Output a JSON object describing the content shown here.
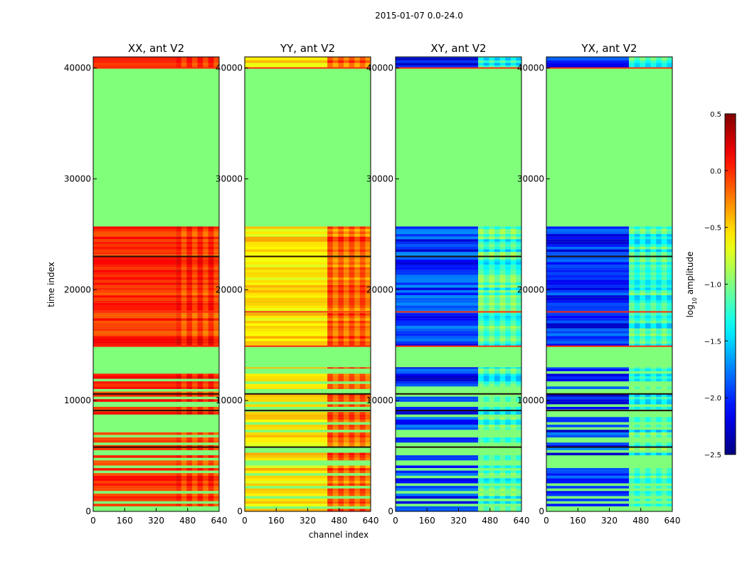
{
  "suptitle": "2015-01-07 0.0-24.0",
  "colors": {
    "flagged": "#80ff7a",
    "line_red": "#ff2a10",
    "line_dark": "#201008"
  },
  "chart_data": {
    "type": "heatmap",
    "title": "2015-01-07 0.0-24.0",
    "xlabel": "channel index",
    "ylabel": "time index",
    "xlim": [
      0,
      640
    ],
    "ylim": [
      0,
      41000
    ],
    "xticks": [
      0,
      160,
      320,
      480,
      640
    ],
    "xtick_labels": [
      "0",
      "160",
      "320",
      "480",
      "640"
    ],
    "yticks": [
      0,
      10000,
      20000,
      30000,
      40000
    ],
    "ytick_labels": [
      "0",
      "10000",
      "20000",
      "30000",
      "40000"
    ],
    "flagged_time_ranges": [
      [
        14900,
        13000
      ],
      [
        25700,
        40000
      ]
    ],
    "panels": [
      {
        "title": "XX, ant V2",
        "base_value": 0.0,
        "row_variation": 0.15,
        "high_chan_value": 0.1
      },
      {
        "title": "YY, ant V2",
        "base_value": -0.55,
        "row_variation": 0.2,
        "high_chan_value": 0.05
      },
      {
        "title": "XY, ant V2",
        "base_value": -2.0,
        "row_variation": 0.3,
        "high_chan_value": -0.9
      },
      {
        "title": "YX, ant V2",
        "base_value": -2.0,
        "row_variation": 0.3,
        "high_chan_value": -0.9
      }
    ],
    "colorbar": {
      "label": "log10 amplitude",
      "label_base": "log",
      "label_sub": "10",
      "label_rest": " amplitude",
      "range": [
        -2.5,
        0.5
      ],
      "ticks": [
        0.5,
        0.0,
        -0.5,
        -1.0,
        -1.5,
        -2.0,
        -2.5
      ],
      "tick_labels": [
        "0.5",
        "0.0",
        "−0.5",
        "−1.0",
        "−1.5",
        "−2.0",
        "−2.5"
      ],
      "colormap": "jet"
    }
  }
}
